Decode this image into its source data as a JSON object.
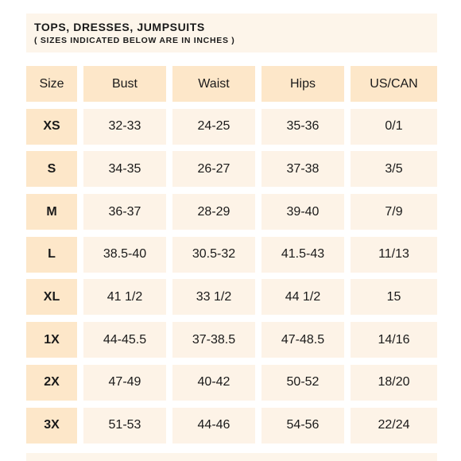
{
  "banner": {
    "title": "TOPS, DRESSES, JUMPSUITS",
    "subtitle": "( SIZES INDICATED BELOW ARE IN INCHES )"
  },
  "table": {
    "headers": [
      "Size",
      "Bust",
      "Waist",
      "Hips",
      "US/CAN"
    ],
    "rows": [
      [
        "XS",
        "32-33",
        "24-25",
        "35-36",
        "0/1"
      ],
      [
        "S",
        "34-35",
        "26-27",
        "37-38",
        "3/5"
      ],
      [
        "M",
        "36-37",
        "28-29",
        "39-40",
        "7/9"
      ],
      [
        "L",
        "38.5-40",
        "30.5-32",
        "41.5-43",
        "11/13"
      ],
      [
        "XL",
        "41 1/2",
        "33 1/2",
        "44 1/2",
        "15"
      ],
      [
        "1X",
        "44-45.5",
        "37-38.5",
        "47-48.5",
        "14/16"
      ],
      [
        "2X",
        "47-49",
        "40-42",
        "50-52",
        "18/20"
      ],
      [
        "3X",
        "51-53",
        "44-46",
        "54-56",
        "22/24"
      ]
    ]
  },
  "colors": {
    "header_fill": "#fde7c9",
    "cell_fill": "#fdf3e7",
    "banner_fill": "#fdf5ea",
    "text": "#1a1a1a"
  }
}
